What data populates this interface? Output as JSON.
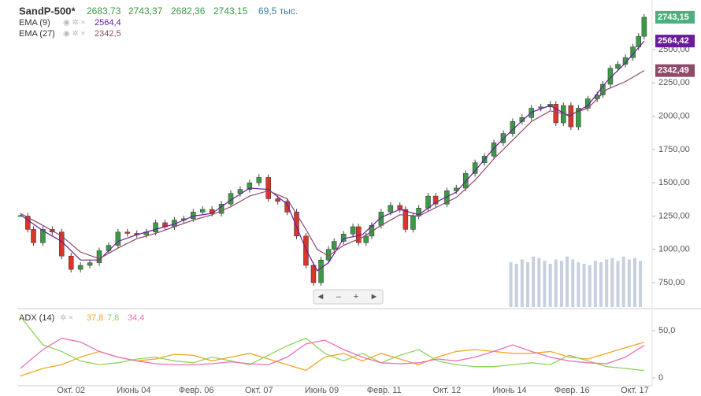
{
  "header": {
    "symbol": "SandP-500*",
    "open": "2683,73",
    "high": "2743,37",
    "low": "2682,36",
    "close": "2743,15",
    "volume": "69,5 тыс."
  },
  "chart_data": [
    {
      "type": "candlestick",
      "xlim": [
        2001.32,
        2018.17
      ],
      "ylim": [
        567,
        2843
      ],
      "yticks": [
        {
          "value": 750,
          "label": "750,00"
        },
        {
          "value": 1000,
          "label": "1000,00"
        },
        {
          "value": 1250,
          "label": "1250,00"
        },
        {
          "value": 1500,
          "label": "1500,00"
        },
        {
          "value": 1750,
          "label": "1750,00"
        },
        {
          "value": 2000,
          "label": "2000,00"
        },
        {
          "value": 2250,
          "label": "2250,00"
        },
        {
          "value": 2500,
          "label": "2500,00"
        }
      ],
      "up_color": "#3a9a45",
      "down_color": "#d9352b",
      "close_tag": "2743,15",
      "close_tag_color": "#4caf7d",
      "x": [
        2001.4,
        2001.6,
        2001.75,
        2002.0,
        2002.25,
        2002.5,
        2002.75,
        2003.0,
        2003.25,
        2003.5,
        2003.75,
        2004.0,
        2004.25,
        2004.5,
        2004.75,
        2005.0,
        2005.25,
        2005.5,
        2005.75,
        2006.0,
        2006.25,
        2006.5,
        2006.75,
        2007.0,
        2007.25,
        2007.5,
        2007.75,
        2008.0,
        2008.25,
        2008.5,
        2008.75,
        2009.0,
        2009.2,
        2009.4,
        2009.6,
        2009.75,
        2010.0,
        2010.25,
        2010.4,
        2010.6,
        2010.75,
        2011.0,
        2011.25,
        2011.5,
        2011.65,
        2011.85,
        2012.0,
        2012.25,
        2012.45,
        2012.75,
        2013.0,
        2013.25,
        2013.5,
        2013.75,
        2014.0,
        2014.25,
        2014.5,
        2014.75,
        2015.0,
        2015.25,
        2015.5,
        2015.65,
        2015.85,
        2016.05,
        2016.25,
        2016.5,
        2016.75,
        2016.9,
        2017.1,
        2017.3,
        2017.5,
        2017.7,
        2017.85,
        2018.0
      ],
      "close": [
        1250,
        1150,
        1050,
        1150,
        1130,
        950,
        850,
        880,
        900,
        990,
        1030,
        1130,
        1120,
        1110,
        1130,
        1200,
        1170,
        1220,
        1230,
        1280,
        1300,
        1270,
        1340,
        1420,
        1450,
        1500,
        1540,
        1380,
        1360,
        1280,
        1100,
        880,
        750,
        920,
        1000,
        1060,
        1115,
        1170,
        1050,
        1100,
        1180,
        1280,
        1330,
        1300,
        1150,
        1250,
        1310,
        1400,
        1340,
        1440,
        1460,
        1570,
        1650,
        1700,
        1800,
        1870,
        1960,
        1990,
        2060,
        2070,
        2090,
        1950,
        2080,
        1920,
        2060,
        2130,
        2160,
        2240,
        2360,
        2390,
        2440,
        2520,
        2600,
        2743.15
      ],
      "series": [
        {
          "name": "EMA (9)",
          "legend_value": "2564,4",
          "tag": "2564,42",
          "color": "#6a1b9a",
          "x": [
            2001.4,
            2002,
            2002.5,
            2003,
            2003.5,
            2004,
            2004.5,
            2005,
            2005.5,
            2006,
            2006.5,
            2007,
            2007.5,
            2008,
            2008.5,
            2009,
            2009.3,
            2009.6,
            2010,
            2010.5,
            2011,
            2011.5,
            2012,
            2012.5,
            2013,
            2013.5,
            2014,
            2014.5,
            2015,
            2015.5,
            2016,
            2016.5,
            2017,
            2017.5,
            2018
          ],
          "values": [
            1260,
            1140,
            1060,
            920,
            920,
            1060,
            1110,
            1150,
            1190,
            1250,
            1270,
            1370,
            1460,
            1450,
            1340,
            1000,
            840,
            900,
            1080,
            1110,
            1240,
            1300,
            1260,
            1360,
            1430,
            1590,
            1760,
            1900,
            2030,
            2080,
            2000,
            2080,
            2260,
            2400,
            2564.42
          ]
        },
        {
          "name": "EMA (27)",
          "legend_value": "2342,5",
          "tag": "2342,49",
          "color": "#8d4a6a",
          "x": [
            2001.4,
            2002,
            2002.5,
            2003,
            2003.5,
            2004,
            2004.5,
            2005,
            2005.5,
            2006,
            2006.5,
            2007,
            2007.5,
            2008,
            2008.5,
            2009,
            2009.3,
            2009.6,
            2010,
            2010.5,
            2011,
            2011.5,
            2012,
            2012.5,
            2013,
            2013.5,
            2014,
            2014.5,
            2015,
            2015.5,
            2016,
            2016.5,
            2017,
            2017.5,
            2018
          ],
          "values": [
            1270,
            1180,
            1100,
            980,
            930,
            1010,
            1080,
            1120,
            1170,
            1220,
            1260,
            1320,
            1400,
            1440,
            1380,
            1150,
            1000,
            950,
            1030,
            1090,
            1180,
            1260,
            1250,
            1320,
            1390,
            1520,
            1680,
            1820,
            1960,
            2040,
            2010,
            2060,
            2200,
            2260,
            2342.49
          ]
        }
      ],
      "volume": {
        "color": "#b8c4d6",
        "ylim": [
          0,
          120
        ],
        "x": [
          2014.45,
          2014.6,
          2014.75,
          2014.9,
          2015.05,
          2015.2,
          2015.35,
          2015.5,
          2015.65,
          2015.8,
          2015.95,
          2016.1,
          2016.25,
          2016.4,
          2016.55,
          2016.7,
          2016.85,
          2017.0,
          2017.15,
          2017.3,
          2017.45,
          2017.6,
          2017.75,
          2017.9
        ],
        "values": [
          62,
          60,
          66,
          62,
          70,
          68,
          64,
          60,
          66,
          64,
          70,
          66,
          62,
          60,
          58,
          64,
          62,
          66,
          68,
          64,
          70,
          66,
          68,
          64
        ]
      }
    },
    {
      "type": "line",
      "title": "ADX (14)",
      "xlim": [
        2001.32,
        2018.17
      ],
      "ylim": [
        -8.3,
        70
      ],
      "yticks": [
        {
          "value": 50,
          "label": "50,0"
        },
        0
      ],
      "xticks": [
        {
          "value": 2002.75,
          "label": "Окт. 02"
        },
        {
          "value": 2004.42,
          "label": "Июнь 04"
        },
        {
          "value": 2006.08,
          "label": "Февр. 06"
        },
        {
          "value": 2007.75,
          "label": "Окт. 07"
        },
        {
          "value": 2009.42,
          "label": "Июнь 09"
        },
        {
          "value": 2011.08,
          "label": "Февр. 11"
        },
        {
          "value": 2012.75,
          "label": "Окт. 12"
        },
        {
          "value": 2014.42,
          "label": "Июнь 14"
        },
        {
          "value": 2016.08,
          "label": "Февр. 16"
        },
        {
          "value": 2017.75,
          "label": "Окт. 17"
        }
      ],
      "x": [
        2001.4,
        2002,
        2002.5,
        2003,
        2003.5,
        2004,
        2004.5,
        2005,
        2005.5,
        2006,
        2006.5,
        2007,
        2007.5,
        2008,
        2008.5,
        2009,
        2009.5,
        2010,
        2010.5,
        2011,
        2011.5,
        2012,
        2012.5,
        2013,
        2013.5,
        2014,
        2014.5,
        2015,
        2015.5,
        2016,
        2016.5,
        2017,
        2017.5,
        2018
      ],
      "series": [
        {
          "legend_value": "37,8",
          "color": "#f5a623",
          "values": [
            2,
            10,
            14,
            22,
            28,
            22,
            18,
            20,
            25,
            24,
            18,
            22,
            26,
            20,
            14,
            8,
            22,
            26,
            18,
            26,
            20,
            14,
            22,
            28,
            30,
            28,
            26,
            26,
            28,
            22,
            20,
            26,
            32,
            37.8
          ]
        },
        {
          "legend_value": "7,8",
          "color": "#8fd45a",
          "values": [
            65,
            35,
            28,
            18,
            14,
            16,
            20,
            22,
            18,
            16,
            22,
            18,
            14,
            24,
            34,
            42,
            26,
            18,
            26,
            16,
            24,
            30,
            18,
            14,
            12,
            12,
            14,
            16,
            14,
            24,
            18,
            12,
            10,
            7.8
          ]
        },
        {
          "legend_value": "34,4",
          "color": "#ee6fb8",
          "values": [
            10,
            30,
            42,
            38,
            28,
            22,
            18,
            15,
            14,
            14,
            15,
            17,
            15,
            14,
            22,
            36,
            40,
            30,
            22,
            16,
            15,
            16,
            20,
            18,
            22,
            28,
            35,
            28,
            22,
            18,
            16,
            15,
            22,
            34.4
          ]
        }
      ]
    }
  ]
}
